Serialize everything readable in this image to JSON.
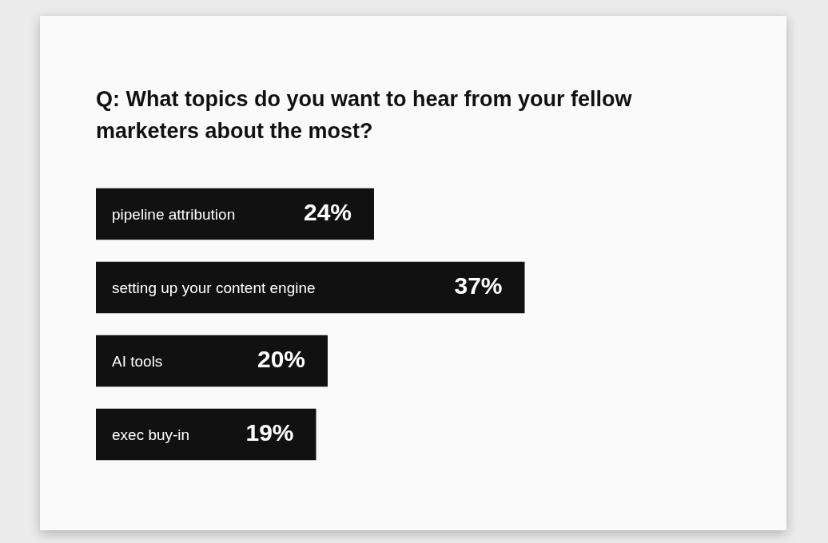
{
  "chart_data": {
    "type": "bar",
    "orientation": "horizontal",
    "title": "Q: What topics do you want to hear from your fellow marketers about the most?",
    "categories": [
      "pipeline attribution",
      "setting up your content engine",
      "AI tools",
      "exec buy-in"
    ],
    "values": [
      24,
      37,
      20,
      19
    ],
    "value_labels": [
      "24%",
      "37%",
      "20%",
      "19%"
    ],
    "color": "#111111"
  }
}
